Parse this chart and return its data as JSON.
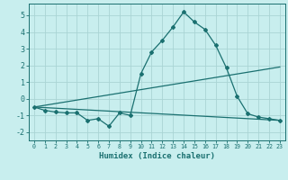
{
  "title": "",
  "xlabel": "Humidex (Indice chaleur)",
  "background_color": "#c8eeee",
  "grid_color": "#aad4d4",
  "line_color": "#1a7070",
  "xlim": [
    -0.5,
    23.5
  ],
  "ylim": [
    -2.5,
    5.7
  ],
  "yticks": [
    -2,
    -1,
    0,
    1,
    2,
    3,
    4,
    5
  ],
  "xticks": [
    0,
    1,
    2,
    3,
    4,
    5,
    6,
    7,
    8,
    9,
    10,
    11,
    12,
    13,
    14,
    15,
    16,
    17,
    18,
    19,
    20,
    21,
    22,
    23
  ],
  "line1_x": [
    0,
    1,
    2,
    3,
    4,
    5,
    6,
    7,
    8,
    9,
    10,
    11,
    12,
    13,
    14,
    15,
    16,
    17,
    18,
    19,
    20,
    21,
    22,
    23
  ],
  "line1_y": [
    -0.5,
    -0.7,
    -0.8,
    -0.85,
    -0.85,
    -1.3,
    -1.2,
    -1.65,
    -0.85,
    -1.0,
    1.5,
    2.8,
    3.5,
    4.3,
    5.2,
    4.6,
    4.15,
    3.2,
    1.85,
    0.15,
    -0.9,
    -1.1,
    -1.2,
    -1.3
  ],
  "line2_x": [
    0,
    23
  ],
  "line2_y": [
    -0.5,
    1.9
  ],
  "line3_x": [
    0,
    23
  ],
  "line3_y": [
    -0.5,
    -1.3
  ]
}
